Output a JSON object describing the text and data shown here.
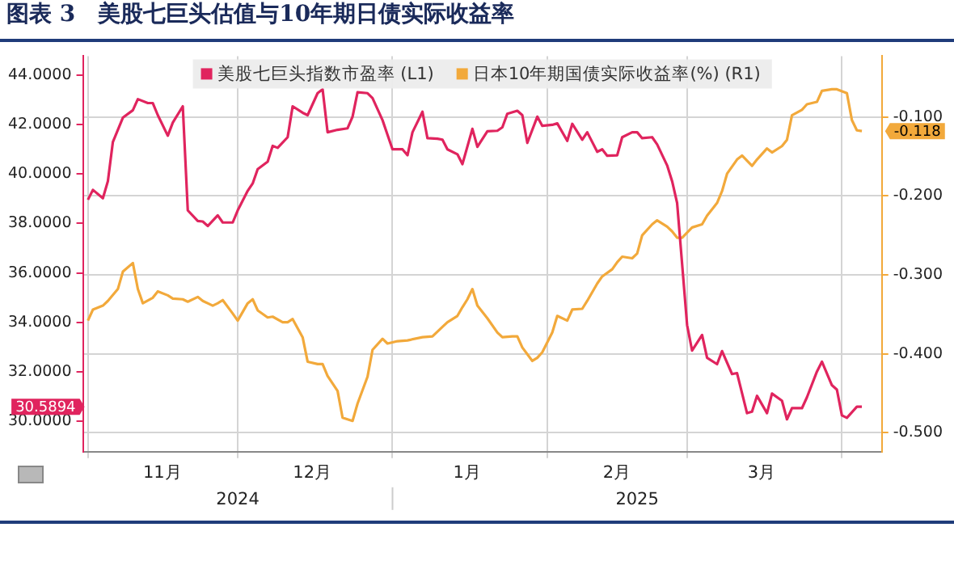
{
  "chart_data": {
    "type": "line",
    "title": "图表 3　美股七巨头估值与10年期日债实际收益率",
    "xlim": [
      "2024-10-31",
      "2025-04-09"
    ],
    "xticks": [
      {
        "value": "2024-11-01",
        "label": null
      },
      {
        "value": "2024-11-16",
        "label": "11月"
      },
      {
        "value": "2024-12-01",
        "label": null
      },
      {
        "value": "2024-12-16",
        "label": "12月"
      },
      {
        "value": "2025-01-01",
        "label": null
      },
      {
        "value": "2025-01-16",
        "label": "1月"
      },
      {
        "value": "2025-02-01",
        "label": null
      },
      {
        "value": "2025-02-15",
        "label": "2月"
      },
      {
        "value": "2025-03-01",
        "label": null
      },
      {
        "value": "2025-03-16",
        "label": "3月"
      },
      {
        "value": "2025-04-01",
        "label": null
      }
    ],
    "ylim": [
      28.77,
      44.77
    ],
    "yticks": [
      {
        "value": 30,
        "label": "30.0000"
      },
      {
        "value": 32,
        "label": "32.0000"
      },
      {
        "value": 34,
        "label": "34.0000"
      },
      {
        "value": 36,
        "label": "36.0000"
      },
      {
        "value": 38,
        "label": "38.0000"
      },
      {
        "value": 40,
        "label": "40.0000"
      },
      {
        "value": 42,
        "label": "42.0000"
      },
      {
        "value": 44,
        "label": "44.0000"
      }
    ],
    "y2lim": [
      -0.524,
      -0.023
    ],
    "y2ticks": [
      {
        "value": -0.5,
        "label": "-0.500"
      },
      {
        "value": -0.4,
        "label": "-0.400"
      },
      {
        "value": -0.3,
        "label": "-0.300"
      },
      {
        "value": -0.2,
        "label": "-0.200"
      },
      {
        "value": -0.1,
        "label": "-0.100"
      }
    ],
    "grid": true,
    "legend": "top",
    "marker": "none",
    "line_style": "solid",
    "annotations": [
      "30.5894",
      "-0.118",
      "2024",
      "2025"
    ],
    "series": [
      {
        "name": "美股七巨头指数市盈率 (L1)",
        "color": "#e0245e",
        "x": [
          "2024-11-01",
          "2024-11-02",
          "2024-11-04",
          "2024-11-05",
          "2024-11-06",
          "2024-11-08",
          "2024-11-10",
          "2024-11-11",
          "2024-11-13",
          "2024-11-14",
          "2024-11-15",
          "2024-11-17",
          "2024-11-18",
          "2024-11-20",
          "2024-11-21",
          "2024-11-23",
          "2024-11-24",
          "2024-11-25",
          "2024-11-27",
          "2024-11-28",
          "2024-11-30",
          "2024-12-01",
          "2024-12-03",
          "2024-12-04",
          "2024-12-05",
          "2024-12-07",
          "2024-12-08",
          "2024-12-09",
          "2024-12-11",
          "2024-12-12",
          "2024-12-14",
          "2024-12-15",
          "2024-12-17",
          "2024-12-18",
          "2024-12-19",
          "2024-12-21",
          "2024-12-23",
          "2024-12-24",
          "2024-12-25",
          "2024-12-27",
          "2024-12-28",
          "2024-12-30",
          "2024-12-31",
          "2025-01-01",
          "2025-01-03",
          "2025-01-04",
          "2025-01-05",
          "2025-01-07",
          "2025-01-08",
          "2025-01-10",
          "2025-01-11",
          "2025-01-12",
          "2025-01-14",
          "2025-01-15",
          "2025-01-17",
          "2025-01-18",
          "2025-01-20",
          "2025-01-22",
          "2025-01-23",
          "2025-01-24",
          "2025-01-26",
          "2025-01-27",
          "2025-01-28",
          "2025-01-30",
          "2025-01-31",
          "2025-02-02",
          "2025-02-03",
          "2025-02-05",
          "2025-02-06",
          "2025-02-08",
          "2025-02-09",
          "2025-02-11",
          "2025-02-12",
          "2025-02-13",
          "2025-02-15",
          "2025-02-16",
          "2025-02-18",
          "2025-02-19",
          "2025-02-20",
          "2025-02-22",
          "2025-02-23",
          "2025-02-25",
          "2025-02-26",
          "2025-02-27",
          "2025-03-01",
          "2025-03-02",
          "2025-03-04",
          "2025-03-05",
          "2025-03-07",
          "2025-03-08",
          "2025-03-10",
          "2025-03-11",
          "2025-03-13",
          "2025-03-14",
          "2025-03-15",
          "2025-03-17",
          "2025-03-18",
          "2025-03-20",
          "2025-03-21",
          "2025-03-22",
          "2025-03-24",
          "2025-03-25",
          "2025-03-27",
          "2025-03-28",
          "2025-03-30",
          "2025-03-31",
          "2025-04-01",
          "2025-04-02",
          "2025-04-04",
          "2025-04-05"
        ],
        "values": [
          38.96,
          39.36,
          39.02,
          39.71,
          41.3,
          42.28,
          42.58,
          43.03,
          42.87,
          42.87,
          42.38,
          41.55,
          42.08,
          42.74,
          38.53,
          38.1,
          38.08,
          37.9,
          38.33,
          38.04,
          38.04,
          38.53,
          39.32,
          39.62,
          40.2,
          40.5,
          41.14,
          41.06,
          41.49,
          42.74,
          42.48,
          42.38,
          43.27,
          43.43,
          41.69,
          41.79,
          41.85,
          42.32,
          43.31,
          43.27,
          43.07,
          42.18,
          41.59,
          41.0,
          41.0,
          40.76,
          41.69,
          42.52,
          41.45,
          41.43,
          41.39,
          41.0,
          40.8,
          40.4,
          41.83,
          41.1,
          41.73,
          41.75,
          41.89,
          42.44,
          42.56,
          42.38,
          41.26,
          42.32,
          41.95,
          41.99,
          42.05,
          41.34,
          42.03,
          41.39,
          41.69,
          40.9,
          41.0,
          40.74,
          40.76,
          41.49,
          41.69,
          41.69,
          41.45,
          41.49,
          41.2,
          40.35,
          39.71,
          38.83,
          33.89,
          32.86,
          33.49,
          32.57,
          32.31,
          32.84,
          31.91,
          31.95,
          30.33,
          30.39,
          31.03,
          30.33,
          31.12,
          30.83,
          30.08,
          30.53,
          30.53,
          30.97,
          32.01,
          32.41,
          31.46,
          31.28,
          30.24,
          30.14,
          30.59,
          30.5894
        ]
      },
      {
        "name": "日本10年期国债实际收益率(%) (R1)",
        "color": "#f2a93b",
        "axis": "y2",
        "x": [
          "2024-11-01",
          "2024-11-02",
          "2024-11-04",
          "2024-11-05",
          "2024-11-07",
          "2024-11-08",
          "2024-11-10",
          "2024-11-11",
          "2024-11-12",
          "2024-11-14",
          "2024-11-15",
          "2024-11-17",
          "2024-11-18",
          "2024-11-20",
          "2024-11-21",
          "2024-11-23",
          "2024-11-24",
          "2024-11-26",
          "2024-11-27",
          "2024-11-28",
          "2024-11-30",
          "2024-12-01",
          "2024-12-03",
          "2024-12-04",
          "2024-12-05",
          "2024-12-07",
          "2024-12-08",
          "2024-12-10",
          "2024-12-11",
          "2024-12-12",
          "2024-12-14",
          "2024-12-15",
          "2024-12-17",
          "2024-12-18",
          "2024-12-19",
          "2024-12-21",
          "2024-12-22",
          "2024-12-24",
          "2024-12-25",
          "2024-12-27",
          "2024-12-28",
          "2024-12-30",
          "2024-12-31",
          "2025-01-02",
          "2025-01-04",
          "2025-01-07",
          "2025-01-09",
          "2025-01-11",
          "2025-01-12",
          "2025-01-14",
          "2025-01-15",
          "2025-01-16",
          "2025-01-17",
          "2025-01-18",
          "2025-01-20",
          "2025-01-22",
          "2025-01-23",
          "2025-01-25",
          "2025-01-26",
          "2025-01-27",
          "2025-01-29",
          "2025-01-30",
          "2025-01-31",
          "2025-02-02",
          "2025-02-03",
          "2025-02-05",
          "2025-02-06",
          "2025-02-08",
          "2025-02-09",
          "2025-02-11",
          "2025-02-12",
          "2025-02-14",
          "2025-02-15",
          "2025-02-16",
          "2025-02-18",
          "2025-02-19",
          "2025-02-20",
          "2025-02-22",
          "2025-02-23",
          "2025-02-25",
          "2025-02-26",
          "2025-02-27",
          "2025-02-28",
          "2025-03-02",
          "2025-03-04",
          "2025-03-05",
          "2025-03-07",
          "2025-03-08",
          "2025-03-09",
          "2025-03-11",
          "2025-03-12",
          "2025-03-14",
          "2025-03-15",
          "2025-03-17",
          "2025-03-18",
          "2025-03-20",
          "2025-03-21",
          "2025-03-22",
          "2025-03-24",
          "2025-03-25",
          "2025-03-27",
          "2025-03-28",
          "2025-03-30",
          "2025-03-31",
          "2025-04-02",
          "2025-04-03",
          "2025-04-04",
          "2025-04-05"
        ],
        "values": [
          -0.358,
          -0.344,
          -0.339,
          -0.333,
          -0.318,
          -0.296,
          -0.285,
          -0.318,
          -0.336,
          -0.329,
          -0.321,
          -0.326,
          -0.33,
          -0.331,
          -0.334,
          -0.328,
          -0.333,
          -0.339,
          -0.336,
          -0.332,
          -0.349,
          -0.358,
          -0.336,
          -0.331,
          -0.345,
          -0.354,
          -0.353,
          -0.36,
          -0.36,
          -0.356,
          -0.379,
          -0.41,
          -0.413,
          -0.413,
          -0.428,
          -0.447,
          -0.481,
          -0.485,
          -0.463,
          -0.429,
          -0.395,
          -0.381,
          -0.387,
          -0.384,
          -0.383,
          -0.379,
          -0.378,
          -0.366,
          -0.36,
          -0.352,
          -0.341,
          -0.331,
          -0.318,
          -0.339,
          -0.355,
          -0.373,
          -0.379,
          -0.378,
          -0.378,
          -0.392,
          -0.409,
          -0.405,
          -0.398,
          -0.373,
          -0.352,
          -0.358,
          -0.344,
          -0.343,
          -0.333,
          -0.311,
          -0.302,
          -0.293,
          -0.284,
          -0.277,
          -0.279,
          -0.273,
          -0.25,
          -0.236,
          -0.231,
          -0.239,
          -0.245,
          -0.253,
          -0.253,
          -0.24,
          -0.236,
          -0.225,
          -0.209,
          -0.194,
          -0.172,
          -0.154,
          -0.149,
          -0.162,
          -0.154,
          -0.14,
          -0.145,
          -0.137,
          -0.129,
          -0.098,
          -0.091,
          -0.084,
          -0.081,
          -0.067,
          -0.065,
          -0.065,
          -0.07,
          -0.104,
          -0.117,
          -0.118
        ]
      }
    ]
  }
}
